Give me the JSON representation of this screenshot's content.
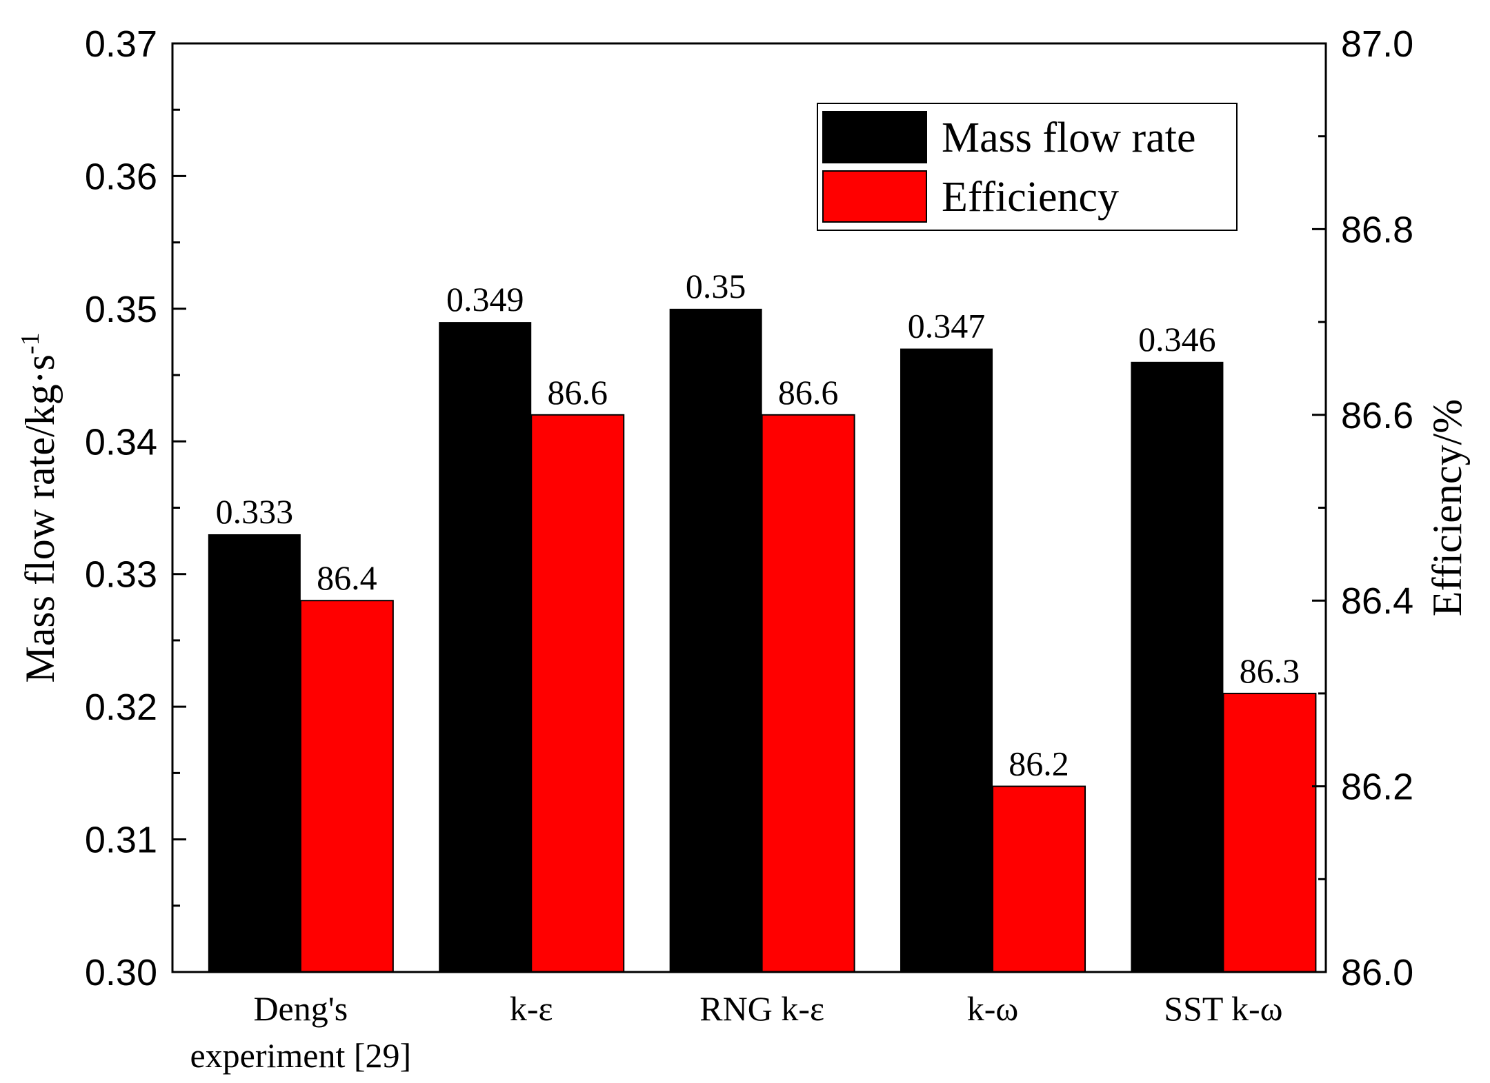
{
  "chart_data": {
    "type": "bar",
    "categories": [
      [
        "Deng's",
        "experiment [29]"
      ],
      [
        "k-ε"
      ],
      [
        "RNG k-ε"
      ],
      [
        "k-ω"
      ],
      [
        "SST k-ω"
      ]
    ],
    "series": [
      {
        "name": "Mass flow rate",
        "axis": "left",
        "color": "#000000",
        "values": [
          0.333,
          0.349,
          0.35,
          0.347,
          0.346
        ],
        "labels": [
          "0.333",
          "0.349",
          "0.35",
          "0.347",
          "0.346"
        ]
      },
      {
        "name": "Efficiency",
        "axis": "right",
        "color": "#ff0000",
        "values": [
          86.4,
          86.6,
          86.6,
          86.2,
          86.3
        ],
        "labels": [
          "86.4",
          "86.6",
          "86.6",
          "86.2",
          "86.3"
        ]
      }
    ],
    "y_left": {
      "label": "Mass flow rate/kg·s",
      "label_superscript": "-1",
      "ylim": [
        0.3,
        0.37
      ],
      "ticks": [
        "0.30",
        "0.31",
        "0.32",
        "0.33",
        "0.34",
        "0.35",
        "0.36",
        "0.37"
      ],
      "minor_step": 0.005
    },
    "y_right": {
      "label": "Efficiency/%",
      "ylim": [
        86.0,
        87.0
      ],
      "ticks": [
        "86.0",
        "86.2",
        "86.4",
        "86.6",
        "86.8",
        "87.0"
      ],
      "minor_step": 0.1
    },
    "legend": {
      "position": "top-right",
      "entries": [
        "Mass flow rate",
        "Efficiency"
      ]
    },
    "grid": false
  }
}
